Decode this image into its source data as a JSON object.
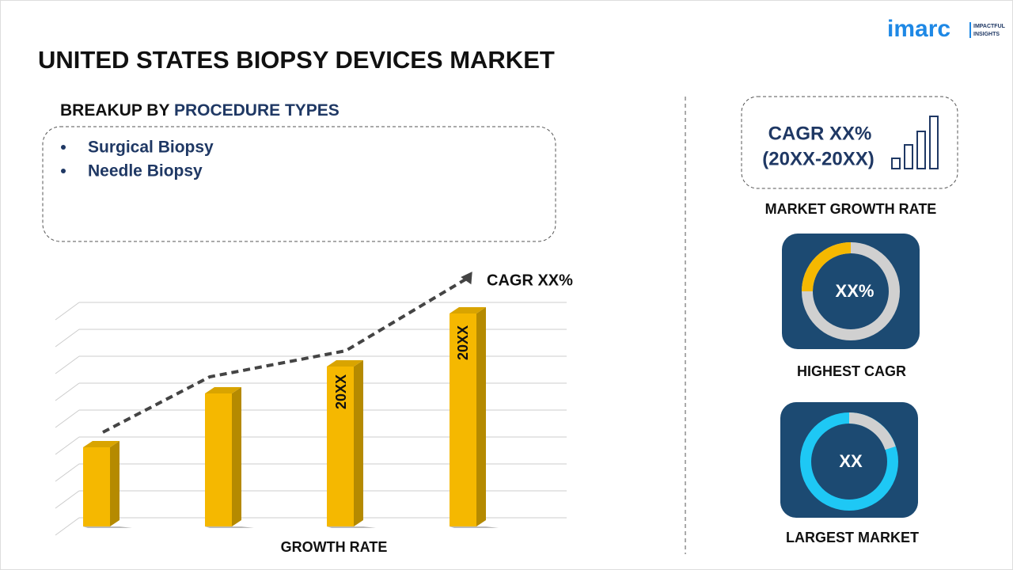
{
  "header": {
    "title": "UNITED STATES BIOPSY DEVICES MARKET",
    "logo": "imarc",
    "logo_tagline": [
      "IMPACTFUL",
      "INSIGHTS"
    ]
  },
  "breakup": {
    "label": "BREAKUP BY",
    "highlight": "PROCEDURE TYPES",
    "items": [
      "Surgical Biopsy",
      "Needle Biopsy"
    ]
  },
  "growth_chart": {
    "cagr_label": "CAGR XX%",
    "bar_labels": [
      "20XX",
      "20XX"
    ],
    "x_label": "GROWTH RATE"
  },
  "side": {
    "cagr_box": [
      "CAGR XX%",
      "(20XX-20XX)"
    ],
    "market_growth_rate": "MARKET GROWTH RATE",
    "highest_cagr_value": "XX%",
    "highest_cagr": "HIGHEST CAGR",
    "largest_market_value": "XX",
    "largest_market": "LARGEST MARKET"
  }
}
